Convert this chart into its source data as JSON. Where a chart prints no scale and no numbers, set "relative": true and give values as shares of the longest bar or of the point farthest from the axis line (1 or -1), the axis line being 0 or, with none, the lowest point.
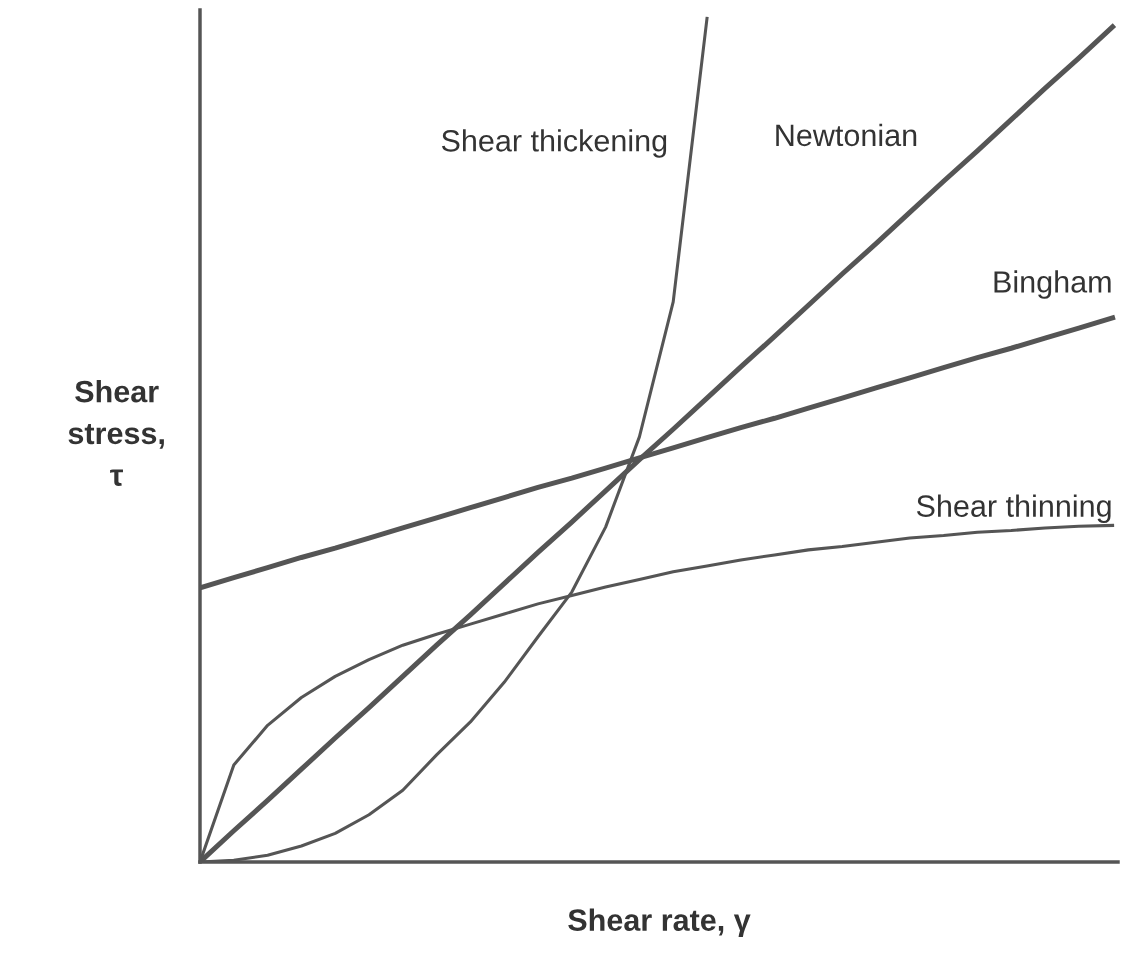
{
  "chart_data": {
    "type": "line",
    "relative": true,
    "xlabel": "Shear rate, γ",
    "ylabel": "Shear\nstress,\nτ",
    "categories": [
      null,
      null,
      null,
      null,
      null,
      null,
      null,
      null,
      null,
      null,
      null,
      null,
      null,
      null,
      null,
      null,
      null,
      null,
      null,
      null,
      null,
      null,
      null,
      null,
      null,
      null,
      null,
      null
    ],
    "series": [
      {
        "name": "Shear thickening",
        "color": "#555555",
        "values": [
          0,
          0.002,
          0.008,
          0.019,
          0.034,
          0.056,
          0.085,
          0.127,
          0.166,
          0.213,
          0.267,
          0.32,
          0.397,
          0.504,
          0.664,
          1.0,
          null,
          null,
          null,
          null,
          null,
          null,
          null,
          null,
          null,
          null,
          null,
          null
        ]
      },
      {
        "name": "Newtonian",
        "color": "#555555",
        "values": [
          0,
          0.037,
          0.073,
          0.11,
          0.147,
          0.183,
          0.22,
          0.257,
          0.293,
          0.33,
          0.367,
          0.403,
          0.44,
          0.477,
          0.513,
          0.55,
          0.587,
          0.623,
          0.66,
          0.697,
          0.733,
          0.77,
          0.807,
          0.843,
          0.88,
          0.917,
          0.953,
          0.99
        ]
      },
      {
        "name": "Bingham",
        "color": "#555555",
        "values": [
          0.325,
          0.337,
          0.349,
          0.361,
          0.372,
          0.384,
          0.396,
          0.408,
          0.42,
          0.432,
          0.444,
          0.455,
          0.467,
          0.479,
          0.491,
          0.503,
          0.515,
          0.526,
          0.538,
          0.55,
          0.562,
          0.574,
          0.586,
          0.598,
          0.609,
          0.621,
          0.633,
          0.645
        ]
      },
      {
        "name": "Shear thinning",
        "color": "#555555",
        "values": [
          0,
          0.115,
          0.162,
          0.195,
          0.22,
          0.24,
          0.257,
          0.27,
          0.282,
          0.294,
          0.306,
          0.316,
          0.326,
          0.335,
          0.344,
          0.351,
          0.358,
          0.364,
          0.37,
          0.374,
          0.379,
          0.384,
          0.387,
          0.391,
          0.393,
          0.396,
          0.398,
          0.399
        ]
      }
    ]
  }
}
